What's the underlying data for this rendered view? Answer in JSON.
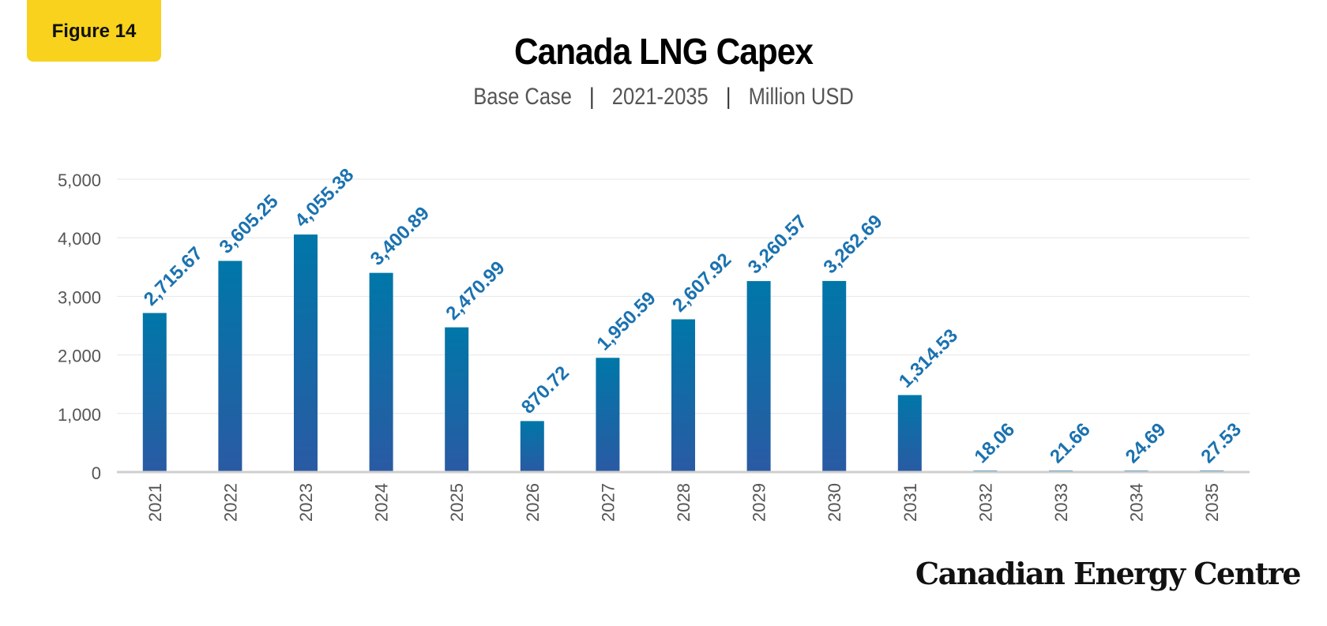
{
  "badge": {
    "label": "Figure 14"
  },
  "chart_data": {
    "type": "bar",
    "title": "Canada LNG Capex",
    "subtitle_parts": [
      "Base Case",
      "2021-2035",
      "Million USD"
    ],
    "categories": [
      "2021",
      "2022",
      "2023",
      "2024",
      "2025",
      "2026",
      "2027",
      "2028",
      "2029",
      "2030",
      "2031",
      "2032",
      "2033",
      "2034",
      "2035"
    ],
    "values": [
      2715.67,
      3605.25,
      4055.38,
      3400.89,
      2470.99,
      870.72,
      1950.59,
      2607.92,
      3260.57,
      3262.69,
      1314.53,
      18.06,
      21.66,
      24.69,
      27.53
    ],
    "data_labels": [
      "2,715.67",
      "3,605.25",
      "4,055.38",
      "3,400.89",
      "2,470.99",
      "870.72",
      "1,950.59",
      "2,607.92",
      "3,260.57",
      "3,262.69",
      "1,314.53",
      "18.06",
      "21.66",
      "24.69",
      "27.53"
    ],
    "y_ticks": [
      0,
      1000,
      2000,
      3000,
      4000,
      5000
    ],
    "y_tick_labels": [
      "0",
      "1,000",
      "2,000",
      "3,000",
      "4,000",
      "5,000"
    ],
    "ylim": [
      0,
      5000
    ],
    "xlabel": "",
    "ylabel": "",
    "grid": true,
    "legend": "none",
    "colors": {
      "bar_top": "#0077a8",
      "bar_bottom": "#2a5aa3",
      "label": "#1a72b0",
      "grid": "#e6e6e6",
      "axis": "#cfcfcf",
      "tick_text": "#555555"
    }
  },
  "brand": {
    "name": "Canadian Energy Centre"
  }
}
